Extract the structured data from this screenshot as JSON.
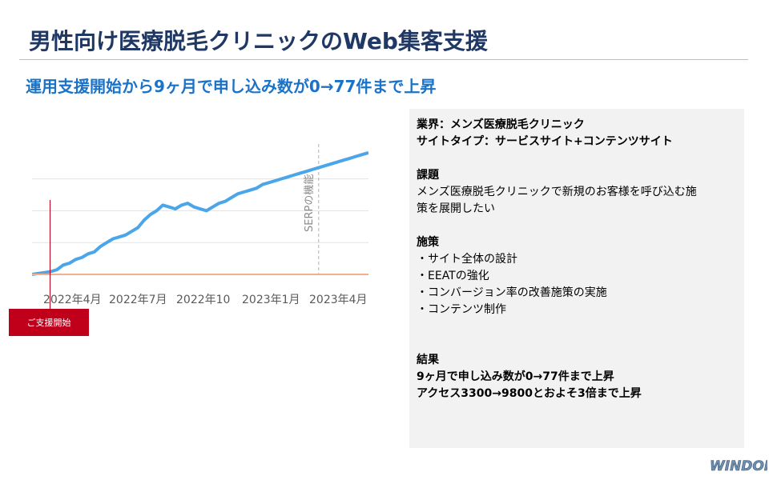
{
  "header": {
    "title": "男性向け医療脱毛クリニックのWeb集客支援",
    "subtitle": "運用支援開始から9ヶ月で申し込み数が0→77件まで上昇"
  },
  "marker": {
    "label": "ご支援開始"
  },
  "panel": {
    "industry": "業界：メンズ医療脱毛クリニック",
    "site_type": "サイトタイプ：サービスサイト+コンテンツサイト",
    "issue_heading": "課題",
    "issue_lines": [
      "メンズ医療脱毛クリニックで新規のお客様を呼び込む施",
      "策を展開したい"
    ],
    "measures_heading": "施策",
    "measures": [
      "・サイト全体の設計",
      "・EEATの強化",
      "・コンバージョン率の改善施策の実施",
      "・コンテンツ制作"
    ],
    "result_heading": "結果",
    "result_line1": "9ヶ月で申し込み数が0→77件まで上昇",
    "result_line2": "アクセス3300→9800とおよそ3倍まで上昇"
  },
  "logo": {
    "text": "WINDOM"
  },
  "chart_data": {
    "type": "line",
    "x_tick_labels": [
      "2022年4月",
      "2022年7月",
      "2022年10",
      "2023年1月",
      "2023年4月"
    ],
    "annotation": "SERPの機能",
    "series": [
      {
        "color": "#4aa6e8",
        "x": [
          0,
          0.04,
          0.08,
          0.12,
          0.16,
          0.2,
          0.24,
          0.28,
          0.32,
          0.36,
          0.4,
          0.44,
          0.48,
          0.52,
          0.56,
          0.6,
          0.64,
          0.68,
          0.72,
          0.76,
          0.8,
          0.84,
          0.88,
          0.92,
          0.96,
          1.0,
          1.04,
          1.08,
          1.12,
          1.16,
          1.2,
          1.24,
          1.28,
          1.32,
          1.36,
          1.4,
          1.44,
          1.48,
          1.52,
          1.56,
          1.6,
          1.64,
          1.68,
          1.72,
          1.76,
          1.8,
          1.84,
          1.88,
          1.92,
          1.96,
          2.0,
          2.04,
          2.08,
          2.12,
          2.16
        ],
        "y": [
          0.0,
          0.01,
          0.02,
          0.03,
          0.05,
          0.1,
          0.12,
          0.16,
          0.18,
          0.22,
          0.24,
          0.3,
          0.34,
          0.38,
          0.4,
          0.42,
          0.46,
          0.5,
          0.58,
          0.64,
          0.68,
          0.74,
          0.72,
          0.7,
          0.74,
          0.76,
          0.72,
          0.7,
          0.68,
          0.72,
          0.76,
          0.78,
          0.82,
          0.86,
          0.88,
          0.9,
          0.92,
          0.96,
          0.98,
          1.0,
          1.02,
          1.04,
          1.06,
          1.08,
          1.1,
          1.12,
          1.14,
          1.16,
          1.18,
          1.2,
          1.22,
          1.24,
          1.26,
          1.28,
          1.3
        ]
      },
      {
        "color": "#f4b08a",
        "x": [
          0,
          2.16
        ],
        "y": [
          0,
          0
        ]
      }
    ],
    "annotation_x": 1.84,
    "grid": true
  }
}
